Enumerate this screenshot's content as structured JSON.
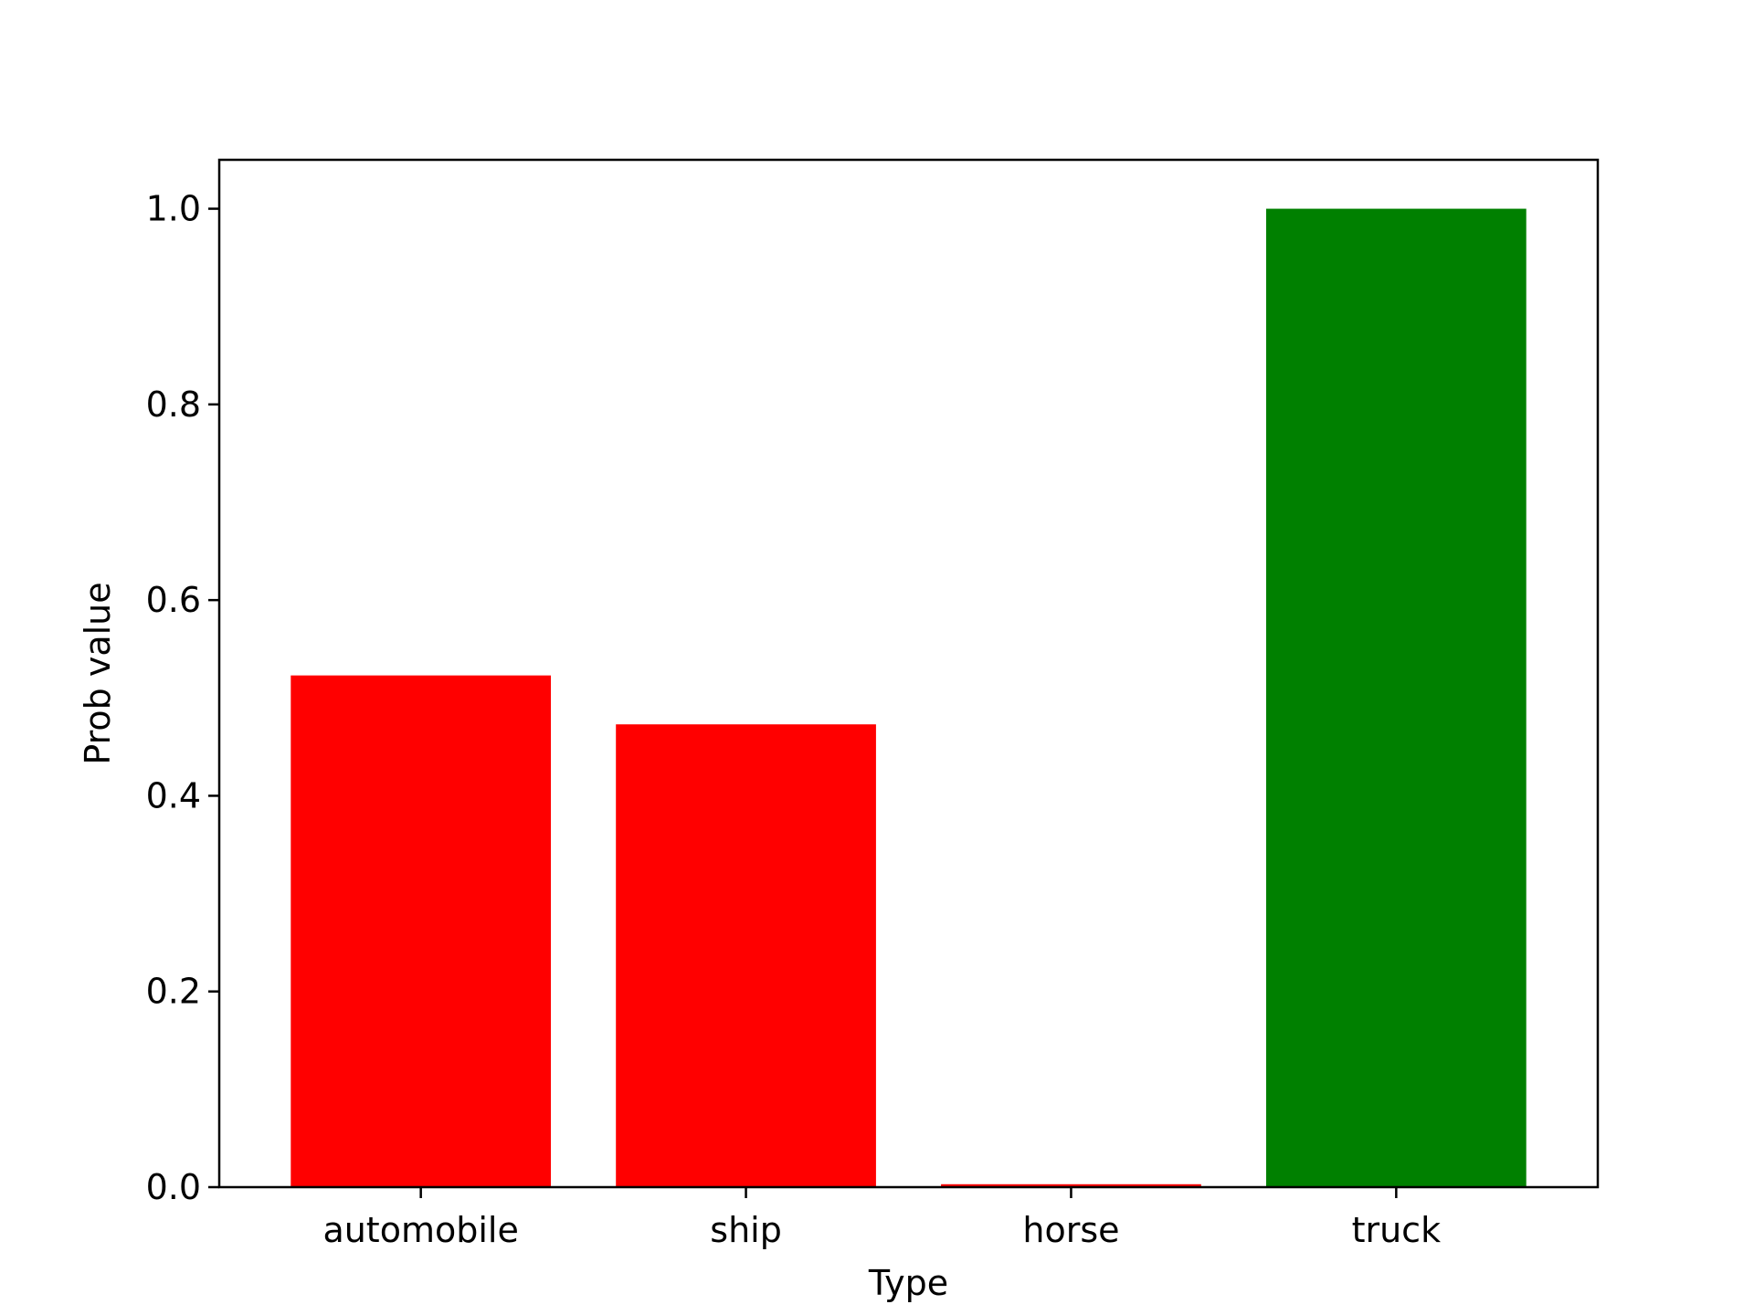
{
  "chart_data": {
    "type": "bar",
    "categories": [
      "automobile",
      "ship",
      "horse",
      "truck"
    ],
    "values": [
      0.523,
      0.473,
      0.003,
      1.0
    ],
    "colors": [
      "#ff0000",
      "#ff0000",
      "#ff0000",
      "#008000"
    ],
    "xlabel": "Type",
    "ylabel": "Prob value",
    "ylim": [
      0,
      1.05
    ],
    "yticks": [
      0.0,
      0.2,
      0.4,
      0.6,
      0.8,
      1.0
    ],
    "ytick_labels": [
      "0.0",
      "0.2",
      "0.4",
      "0.6",
      "0.8",
      "1.0"
    ],
    "grid": false,
    "legend": "none"
  }
}
